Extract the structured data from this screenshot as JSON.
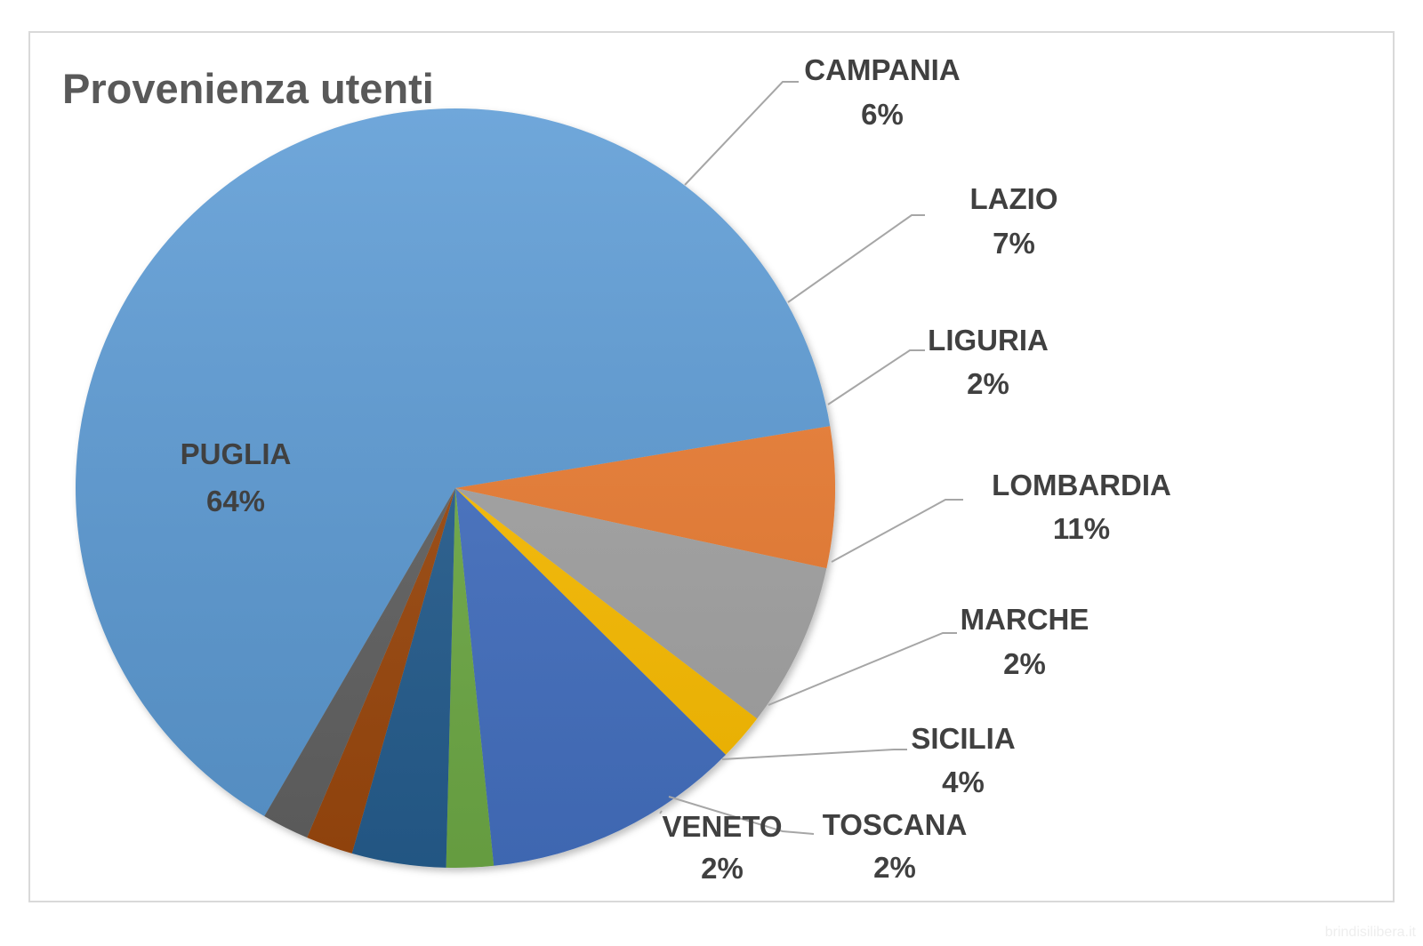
{
  "chart_data": {
    "type": "pie",
    "title": "Provenienza utenti",
    "slices": [
      {
        "label": "PUGLIA",
        "pct_label": "64%",
        "value": 64,
        "color": "#5B9BD5"
      },
      {
        "label": "CAMPANIA",
        "pct_label": "6%",
        "value": 6,
        "color": "#ED7D31"
      },
      {
        "label": "LAZIO",
        "pct_label": "7%",
        "value": 7,
        "color": "#A5A5A5"
      },
      {
        "label": "LIGURIA",
        "pct_label": "2%",
        "value": 2,
        "color": "#FFC000"
      },
      {
        "label": "LOMBARDIA",
        "pct_label": "11%",
        "value": 11,
        "color": "#4472C4"
      },
      {
        "label": "MARCHE",
        "pct_label": "2%",
        "value": 2,
        "color": "#70AD47"
      },
      {
        "label": "SICILIA",
        "pct_label": "4%",
        "value": 4,
        "color": "#255E91"
      },
      {
        "label": "TOSCANA",
        "pct_label": "2%",
        "value": 2,
        "color": "#9E480E"
      },
      {
        "label": "VENETO",
        "pct_label": "2%",
        "value": 2,
        "color": "#636363"
      }
    ],
    "legend": "none",
    "leader_line_color": "#a6a6a6"
  },
  "watermark": "brindisilibera.it"
}
